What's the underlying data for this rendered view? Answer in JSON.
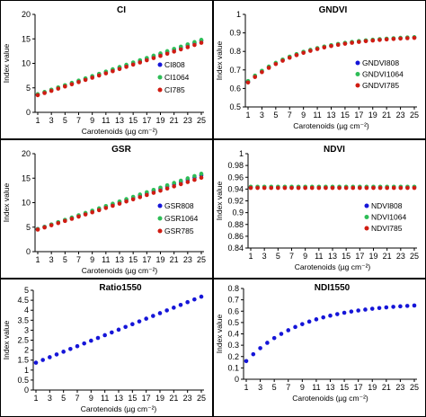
{
  "colors": {
    "blue": "#1515d8",
    "green": "#2ebd57",
    "red": "#d01c12",
    "axis": "#000000"
  },
  "chart_data": [
    {
      "type": "scatter",
      "title": "CI",
      "xlabel": "Carotenoids (µg cm⁻²)",
      "ylabel": "Index value",
      "x": [
        1,
        2,
        3,
        4,
        5,
        6,
        7,
        8,
        9,
        10,
        11,
        12,
        13,
        14,
        15,
        16,
        17,
        18,
        19,
        20,
        21,
        22,
        23,
        24,
        25
      ],
      "xticks": [
        1,
        3,
        5,
        7,
        9,
        11,
        13,
        15,
        17,
        19,
        21,
        23,
        25
      ],
      "ylim": [
        0,
        20
      ],
      "yticks": [
        0,
        5,
        10,
        15,
        20
      ],
      "legend_position": "right",
      "series": [
        {
          "name": "CI808",
          "color": "#1515d8",
          "start": 3.6,
          "end": 14.6,
          "shape": "linear"
        },
        {
          "name": "CI1064",
          "color": "#2ebd57",
          "start": 3.7,
          "end": 14.8,
          "shape": "linear"
        },
        {
          "name": "CI785",
          "color": "#d01c12",
          "start": 3.5,
          "end": 14.2,
          "shape": "linear"
        }
      ]
    },
    {
      "type": "scatter",
      "title": "GNDVI",
      "xlabel": "Carotenoids (µg cm⁻²)",
      "ylabel": "Index value",
      "x": [
        1,
        2,
        3,
        4,
        5,
        6,
        7,
        8,
        9,
        10,
        11,
        12,
        13,
        14,
        15,
        16,
        17,
        18,
        19,
        20,
        21,
        22,
        23,
        24,
        25
      ],
      "xticks": [
        1,
        3,
        5,
        7,
        9,
        11,
        13,
        15,
        17,
        19,
        21,
        23,
        25
      ],
      "ylim": [
        0.5,
        1.0
      ],
      "yticks": [
        0.5,
        0.6,
        0.7,
        0.8,
        0.9,
        1.0
      ],
      "legend_position": "right",
      "series": [
        {
          "name": "GNDVI808",
          "color": "#1515d8",
          "start": 0.635,
          "end": 0.875,
          "shape": "saturating"
        },
        {
          "name": "GNDVI1064",
          "color": "#2ebd57",
          "start": 0.64,
          "end": 0.877,
          "shape": "saturating"
        },
        {
          "name": "GNDVI785",
          "color": "#d01c12",
          "start": 0.632,
          "end": 0.873,
          "shape": "saturating"
        }
      ]
    },
    {
      "type": "scatter",
      "title": "GSR",
      "xlabel": "Carotenoids (µg cm⁻²)",
      "ylabel": "Index value",
      "x": [
        1,
        2,
        3,
        4,
        5,
        6,
        7,
        8,
        9,
        10,
        11,
        12,
        13,
        14,
        15,
        16,
        17,
        18,
        19,
        20,
        21,
        22,
        23,
        24,
        25
      ],
      "xticks": [
        1,
        3,
        5,
        7,
        9,
        11,
        13,
        15,
        17,
        19,
        21,
        23,
        25
      ],
      "ylim": [
        0,
        20
      ],
      "yticks": [
        0,
        5,
        10,
        15,
        20
      ],
      "legend_position": "right",
      "series": [
        {
          "name": "GSR808",
          "color": "#1515d8",
          "start": 4.6,
          "end": 15.6,
          "shape": "linear"
        },
        {
          "name": "GSR1064",
          "color": "#2ebd57",
          "start": 4.6,
          "end": 15.9,
          "shape": "linear"
        },
        {
          "name": "GSR785",
          "color": "#d01c12",
          "start": 4.5,
          "end": 15.1,
          "shape": "linear"
        }
      ]
    },
    {
      "type": "scatter",
      "title": "NDVI",
      "xlabel": "Carotenoids (µg cm⁻²)",
      "ylabel": "Index value",
      "x": [
        1,
        2,
        3,
        4,
        5,
        6,
        7,
        8,
        9,
        10,
        11,
        12,
        13,
        14,
        15,
        16,
        17,
        18,
        19,
        20,
        21,
        22,
        23,
        24,
        25
      ],
      "xticks": [
        1,
        3,
        5,
        7,
        9,
        11,
        13,
        15,
        17,
        19,
        21,
        23,
        25
      ],
      "ylim": [
        0.84,
        1.0
      ],
      "yticks": [
        0.84,
        0.86,
        0.88,
        0.9,
        0.92,
        0.94,
        0.96,
        0.98,
        1.0
      ],
      "legend_position": "right",
      "series": [
        {
          "name": "NDVI808",
          "color": "#1515d8",
          "start": 0.943,
          "end": 0.943,
          "shape": "linear"
        },
        {
          "name": "NDVI1064",
          "color": "#2ebd57",
          "start": 0.944,
          "end": 0.944,
          "shape": "linear"
        },
        {
          "name": "NDVI785",
          "color": "#d01c12",
          "start": 0.942,
          "end": 0.942,
          "shape": "linear"
        }
      ]
    },
    {
      "type": "scatter",
      "title": "Ratio1550",
      "xlabel": "Carotenoids (µg cm⁻²)",
      "ylabel": "Index value",
      "x": [
        1,
        2,
        3,
        4,
        5,
        6,
        7,
        8,
        9,
        10,
        11,
        12,
        13,
        14,
        15,
        16,
        17,
        18,
        19,
        20,
        21,
        22,
        23,
        24,
        25
      ],
      "xticks": [
        1,
        3,
        5,
        7,
        9,
        11,
        13,
        15,
        17,
        19,
        21,
        23,
        25
      ],
      "ylim": [
        0,
        5
      ],
      "yticks": [
        0,
        0.5,
        1,
        1.5,
        2,
        2.5,
        3,
        3.5,
        4,
        4.5,
        5
      ],
      "legend_position": "none",
      "series": [
        {
          "name": "",
          "color": "#1515d8",
          "start": 1.37,
          "end": 4.68,
          "shape": "linear"
        }
      ]
    },
    {
      "type": "scatter",
      "title": "NDI1550",
      "xlabel": "Carotenoids (µg cm⁻²)",
      "ylabel": "Index value",
      "x": [
        1,
        2,
        3,
        4,
        5,
        6,
        7,
        8,
        9,
        10,
        11,
        12,
        13,
        14,
        15,
        16,
        17,
        18,
        19,
        20,
        21,
        22,
        23,
        24,
        25
      ],
      "xticks": [
        1,
        3,
        5,
        7,
        9,
        11,
        13,
        15,
        17,
        19,
        21,
        23,
        25
      ],
      "ylim": [
        0,
        0.8
      ],
      "yticks": [
        0,
        0.1,
        0.2,
        0.3,
        0.4,
        0.5,
        0.6,
        0.7,
        0.8
      ],
      "legend_position": "none",
      "series": [
        {
          "name": "",
          "color": "#1515d8",
          "start": 0.16,
          "end": 0.65,
          "shape": "saturating"
        }
      ]
    }
  ]
}
